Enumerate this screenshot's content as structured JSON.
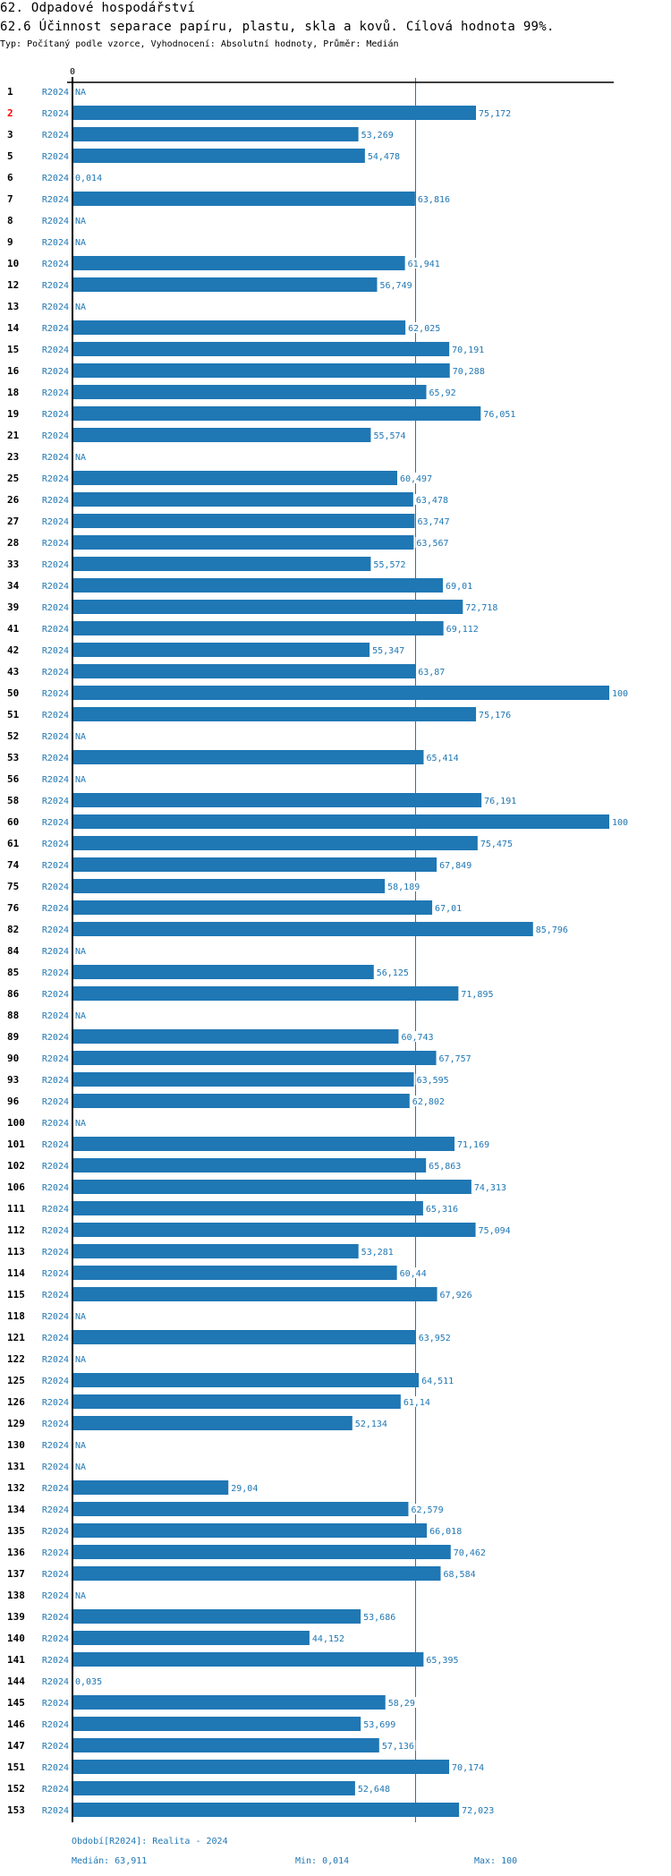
{
  "header": {
    "section": "62. Odpadové hospodářství",
    "indicator": "62.6 Účinnost separace papíru, plastu, skla a kovů. Cílová hodnota 99%.",
    "meta": "Typ: Počítaný podle vzorce, Vyhodnocení: Absolutní hodnoty, Průměr: Medián"
  },
  "colors": {
    "bar": "#1f77b4",
    "label": "#1f77b4",
    "rownum": "#000000",
    "highlight": "#ff0000",
    "axis": "#000000",
    "median": "#1f77b4"
  },
  "chart_data": {
    "type": "bar",
    "orientation": "horizontal",
    "title": "62.6 Účinnost separace papíru, plastu, skla a kovů. Cílová hodnota 99%.",
    "xlabel": "",
    "ylabel": "",
    "xlim": [
      0,
      100
    ],
    "x_ticks": [
      "0"
    ],
    "period_label": "R2024",
    "highlighted_category": "2",
    "median_line": 63.911,
    "grid": false,
    "categories": [
      "1",
      "2",
      "3",
      "5",
      "6",
      "7",
      "8",
      "9",
      "10",
      "12",
      "13",
      "14",
      "15",
      "16",
      "18",
      "19",
      "21",
      "23",
      "25",
      "26",
      "27",
      "28",
      "33",
      "34",
      "39",
      "41",
      "42",
      "43",
      "50",
      "51",
      "52",
      "53",
      "56",
      "58",
      "60",
      "61",
      "74",
      "75",
      "76",
      "82",
      "84",
      "85",
      "86",
      "88",
      "89",
      "90",
      "93",
      "96",
      "100",
      "101",
      "102",
      "106",
      "111",
      "112",
      "113",
      "114",
      "115",
      "118",
      "121",
      "122",
      "125",
      "126",
      "129",
      "130",
      "131",
      "132",
      "134",
      "135",
      "136",
      "137",
      "138",
      "139",
      "140",
      "141",
      "144",
      "145",
      "146",
      "147",
      "151",
      "152",
      "153"
    ],
    "values": [
      null,
      75.172,
      53.269,
      54.478,
      0.014,
      63.816,
      null,
      null,
      61.941,
      56.749,
      null,
      62.025,
      70.191,
      70.288,
      65.92,
      76.051,
      55.574,
      null,
      60.497,
      63.478,
      63.747,
      63.567,
      55.572,
      69.01,
      72.718,
      69.112,
      55.347,
      63.87,
      100,
      75.176,
      null,
      65.414,
      null,
      76.191,
      100,
      75.475,
      67.849,
      58.189,
      67.01,
      85.796,
      null,
      56.125,
      71.895,
      null,
      60.743,
      67.757,
      63.595,
      62.802,
      null,
      71.169,
      65.863,
      74.313,
      65.316,
      75.094,
      53.281,
      60.44,
      67.926,
      null,
      63.952,
      null,
      64.511,
      61.14,
      52.134,
      null,
      null,
      29.04,
      62.579,
      66.018,
      70.462,
      68.584,
      null,
      53.686,
      44.152,
      65.395,
      0.035,
      58.29,
      53.699,
      57.136,
      70.174,
      52.648,
      72.023
    ],
    "value_labels": [
      "NA",
      "75,172",
      "53,269",
      "54,478",
      "0,014",
      "63,816",
      "NA",
      "NA",
      "61,941",
      "56,749",
      "NA",
      "62,025",
      "70,191",
      "70,288",
      "65,92",
      "76,051",
      "55,574",
      "NA",
      "60,497",
      "63,478",
      "63,747",
      "63,567",
      "55,572",
      "69,01",
      "72,718",
      "69,112",
      "55,347",
      "63,87",
      "100",
      "75,176",
      "NA",
      "65,414",
      "NA",
      "76,191",
      "100",
      "75,475",
      "67,849",
      "58,189",
      "67,01",
      "85,796",
      "NA",
      "56,125",
      "71,895",
      "NA",
      "60,743",
      "67,757",
      "63,595",
      "62,802",
      "NA",
      "71,169",
      "65,863",
      "74,313",
      "65,316",
      "75,094",
      "53,281",
      "60,44",
      "67,926",
      "NA",
      "63,952",
      "NA",
      "64,511",
      "61,14",
      "52,134",
      "NA",
      "NA",
      "29,04",
      "62,579",
      "66,018",
      "70,462",
      "68,584",
      "NA",
      "53,686",
      "44,152",
      "65,395",
      "0,035",
      "58,29",
      "53,699",
      "57,136",
      "70,174",
      "52,648",
      "72,023"
    ]
  },
  "footer": {
    "period": "Období[R2024]: Realita - 2024",
    "median": "Medián: 63,911",
    "min": "Min: 0,014",
    "max": "Max: 100"
  }
}
